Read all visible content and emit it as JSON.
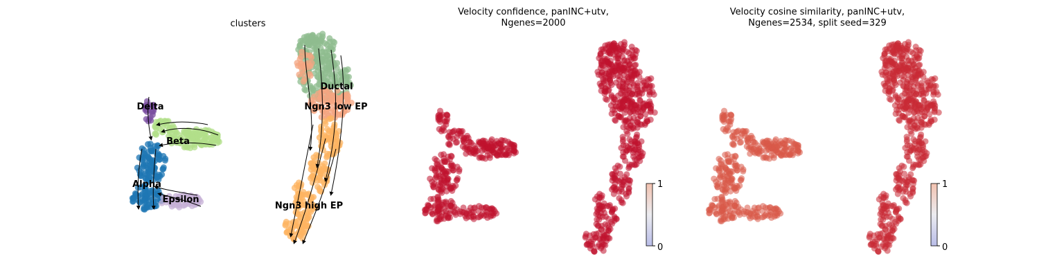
{
  "chart_data": [
    {
      "type": "scatter",
      "title": "clusters",
      "subtitle": "",
      "clusters": [
        {
          "name": "Ductal",
          "color": "#8fbc8f"
        },
        {
          "name": "Ngn3 low EP",
          "color": "#f4a582"
        },
        {
          "name": "Ngn3 high EP",
          "color": "#fdb462"
        },
        {
          "name": "Beta",
          "color": "#b2df8a"
        },
        {
          "name": "Alpha",
          "color": "#1f77b4"
        },
        {
          "name": "Delta",
          "color": "#7b4fa0"
        },
        {
          "name": "Epsilon",
          "color": "#c5b0d5"
        }
      ],
      "streamlines": true,
      "grid": false,
      "axes_visible": false
    },
    {
      "type": "scatter",
      "title": "Velocity confidence, panINC+utv,\nNgenes=2000",
      "colorbar": {
        "cmap": "coolwarm",
        "vmin": "0",
        "vmax": "1",
        "ticks": [
          "1",
          "0"
        ]
      },
      "point_color": "#c0122e",
      "grid": false,
      "axes_visible": false
    },
    {
      "type": "scatter",
      "title": "Velocity cosine similarity, panINC+utv,\nNgenes=2534, split seed=329",
      "colorbar": {
        "cmap": "coolwarm",
        "vmin": "0",
        "vmax": "1",
        "ticks": [
          "1",
          "0"
        ]
      },
      "point_color_left": "#d85a48",
      "point_color_right": "#c82a34",
      "grid": false,
      "axes_visible": false
    }
  ]
}
